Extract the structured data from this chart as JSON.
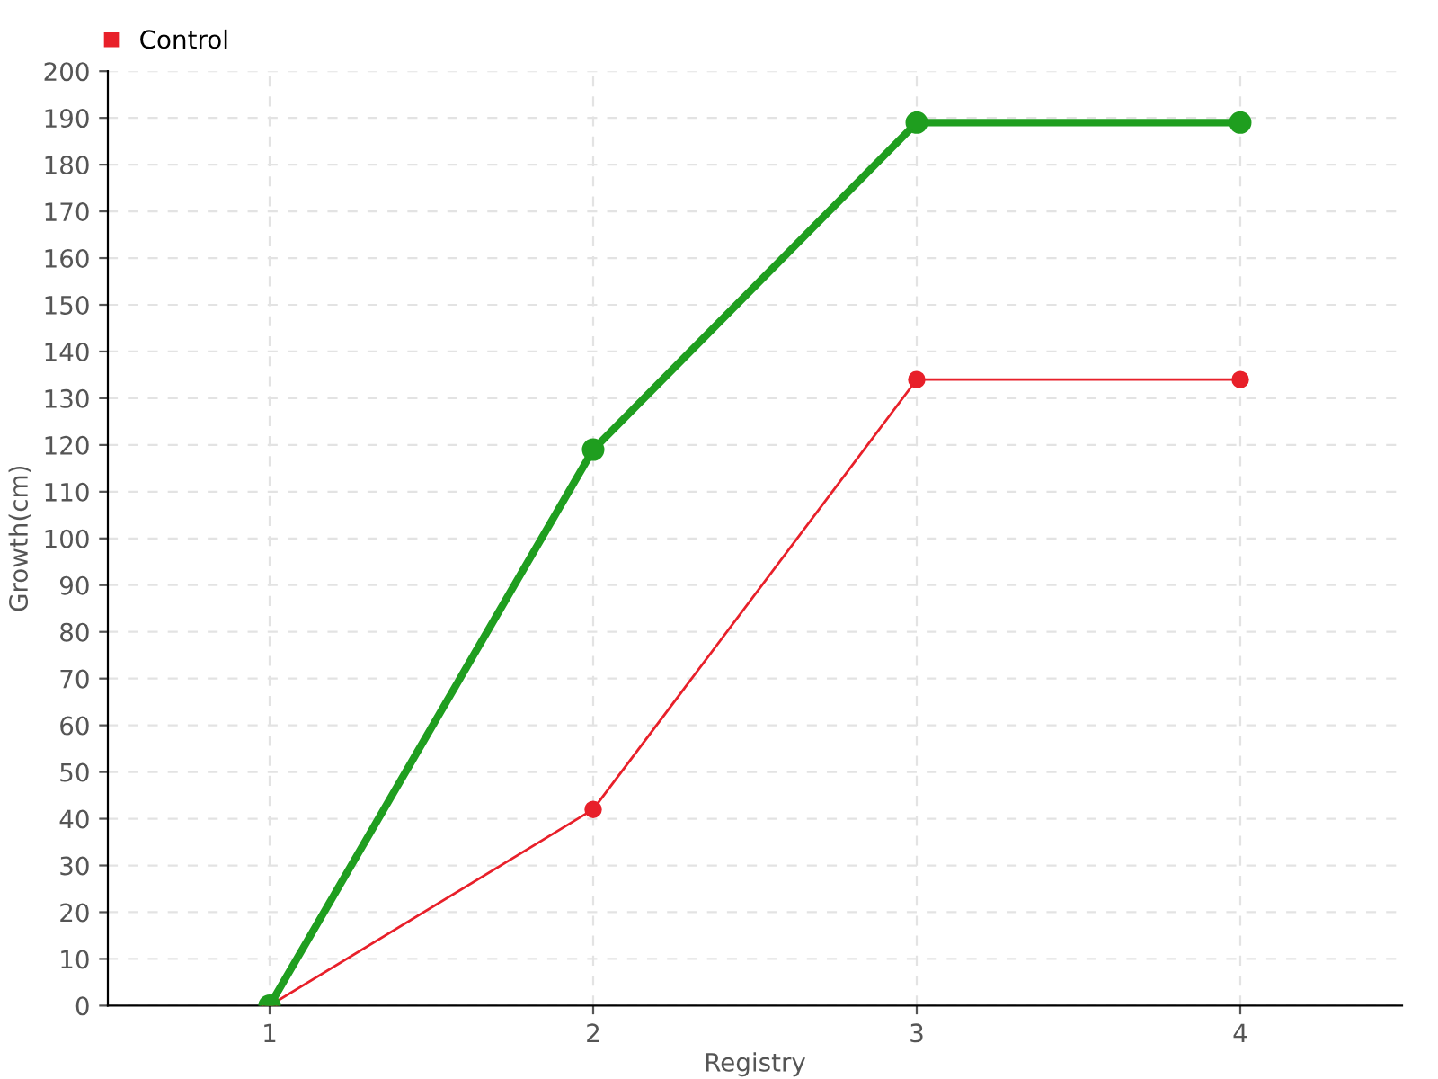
{
  "chart_data": {
    "type": "line",
    "xlabel": "Registry",
    "ylabel": "Growth(cm)",
    "x": [
      1,
      2,
      3,
      4
    ],
    "series": [
      {
        "color": "#1f9e1f",
        "values": [
          0,
          119,
          189,
          189
        ]
      },
      {
        "name": "Control",
        "color": "#e8202a",
        "values": [
          0,
          42,
          134,
          134
        ]
      }
    ],
    "xlim": [
      0.5,
      4.5
    ],
    "xticks": [
      1,
      2,
      3,
      4
    ],
    "ylim": [
      0,
      200
    ],
    "yticks": [
      0,
      10,
      20,
      30,
      40,
      50,
      60,
      70,
      80,
      90,
      100,
      110,
      120,
      130,
      140,
      150,
      160,
      170,
      180,
      190,
      200
    ],
    "grid": true,
    "legend": "top left",
    "marker": "circle",
    "line_style": "solid"
  }
}
